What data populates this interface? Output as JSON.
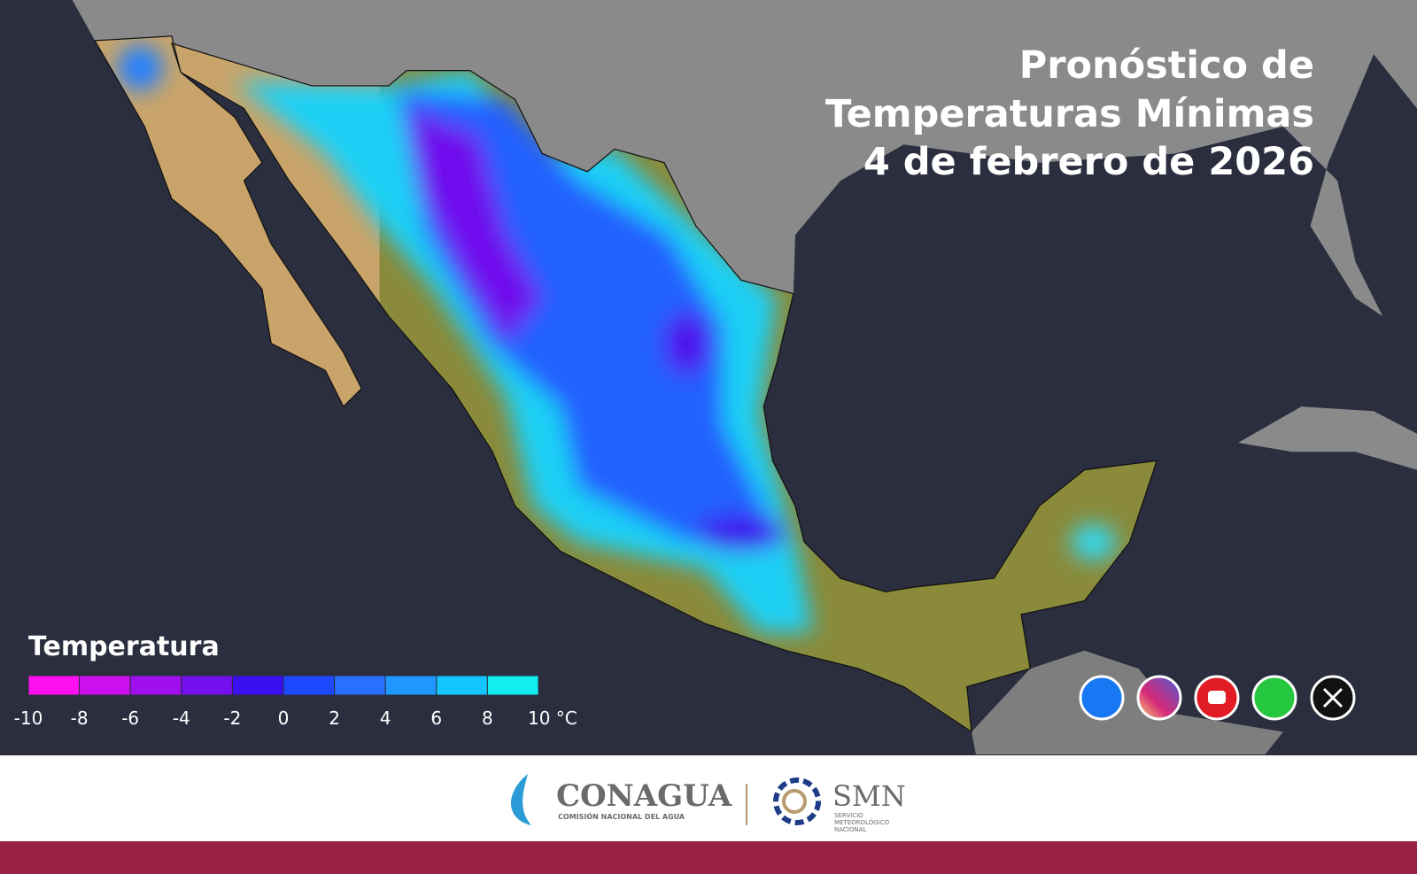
{
  "header": {
    "title_lines": [
      "Pronóstico de",
      "Temperaturas Mínimas",
      "4 de febrero de 2026"
    ]
  },
  "legend": {
    "title": "Temperatura",
    "colors": [
      "#ff10f0",
      "#cc10ee",
      "#a010ee",
      "#7410ee",
      "#3a10f0",
      "#1e48ff",
      "#2870ff",
      "#1e98ff",
      "#14c6ff",
      "#12eef0"
    ],
    "labels": [
      "-10",
      "-8",
      "-6",
      "-4",
      "-2",
      "0",
      "2",
      "4",
      "6",
      "8",
      "10 °C"
    ]
  },
  "footer": {
    "conagua": {
      "name": "CONAGUA",
      "subtitle": "COMISIÓN NACIONAL DEL AGUA"
    },
    "smn": {
      "name": "SMN",
      "subtitle_lines": [
        "SERVICIO",
        "METEOROLÓGICO",
        "NACIONAL"
      ]
    }
  }
}
